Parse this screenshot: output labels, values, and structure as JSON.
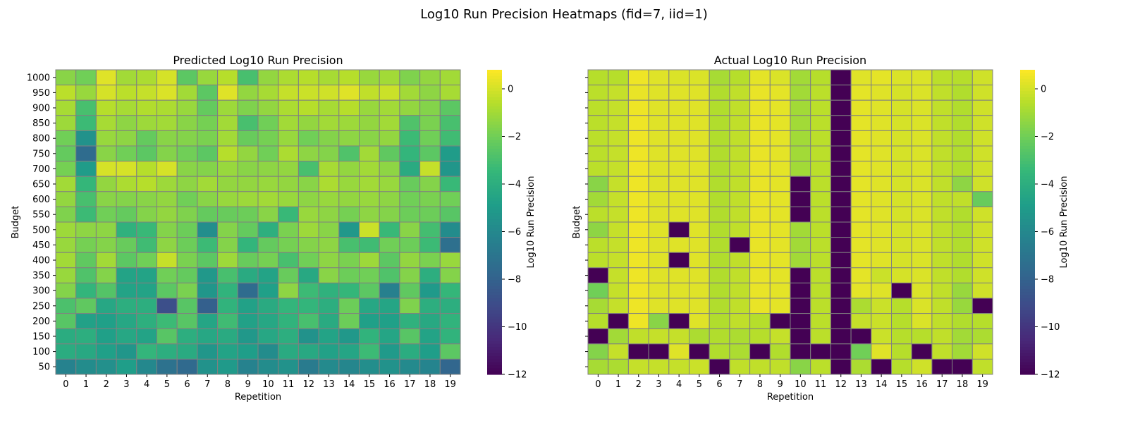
{
  "figure": {
    "title": "Log10 Run Precision Heatmaps (fid=7, iid=1)"
  },
  "colormap": {
    "name": "viridis",
    "stops": [
      "#440154",
      "#482878",
      "#3e4a89",
      "#31688e",
      "#26828e",
      "#1f9e89",
      "#35b779",
      "#6ece58",
      "#b5de2b",
      "#fde725"
    ]
  },
  "chart_data": [
    {
      "type": "heatmap",
      "title": "Predicted Log10 Run Precision",
      "xlabel": "Repetition",
      "ylabel": "Budget",
      "x": [
        0,
        1,
        2,
        3,
        4,
        5,
        6,
        7,
        8,
        9,
        10,
        11,
        12,
        13,
        14,
        15,
        16,
        17,
        18,
        19
      ],
      "y": [
        1000,
        950,
        900,
        850,
        800,
        750,
        700,
        650,
        600,
        550,
        500,
        450,
        400,
        350,
        300,
        250,
        200,
        150,
        100,
        50
      ],
      "colorbar_label": "Log10 Run Precision",
      "colorbar_ticks": [
        0,
        -2,
        -4,
        -6,
        -8,
        -10,
        -12
      ],
      "vmin": -12,
      "vmax": 0.8,
      "values": [
        [
          -1.5,
          -2.0,
          0.2,
          -1.0,
          -0.8,
          0.0,
          -2.5,
          -1.2,
          -0.6,
          -3.0,
          -1.3,
          -0.8,
          -0.6,
          -0.9,
          -0.6,
          -1.2,
          -1.0,
          -1.7,
          -1.3,
          -1.0
        ],
        [
          -0.5,
          -1.2,
          0.0,
          -0.5,
          -0.3,
          0.1,
          -1.0,
          -2.5,
          0.2,
          -1.3,
          -0.9,
          -0.3,
          -0.2,
          -0.1,
          0.2,
          -0.4,
          -0.2,
          -1.0,
          -1.4,
          -0.9
        ],
        [
          -0.9,
          -3.0,
          -0.6,
          -0.9,
          -0.7,
          -0.8,
          -1.2,
          -2.3,
          -1.1,
          -1.7,
          -1.3,
          -0.8,
          -0.6,
          -0.9,
          -0.6,
          -1.2,
          -1.0,
          -1.3,
          -1.6,
          -2.5
        ],
        [
          -1.1,
          -3.3,
          -0.9,
          -1.4,
          -1.1,
          -1.0,
          -1.5,
          -1.9,
          -1.0,
          -3.0,
          -2.0,
          -1.0,
          -1.3,
          -1.0,
          -1.1,
          -1.3,
          -1.0,
          -2.8,
          -1.8,
          -3.0
        ],
        [
          -2.0,
          -5.5,
          -1.2,
          -1.4,
          -2.3,
          -1.5,
          -1.6,
          -1.8,
          -1.0,
          -2.2,
          -1.9,
          -1.2,
          -2.0,
          -1.6,
          -1.4,
          -1.5,
          -1.3,
          -3.3,
          -2.0,
          -3.2
        ],
        [
          -2.3,
          -7.5,
          -1.5,
          -2.0,
          -2.5,
          -1.6,
          -2.0,
          -2.5,
          -0.6,
          -1.3,
          -2.0,
          -0.8,
          -1.4,
          -1.6,
          -2.8,
          -1.0,
          -2.4,
          -3.6,
          -2.5,
          -5.0
        ],
        [
          -1.9,
          -5.0,
          0.0,
          0.0,
          -0.6,
          0.0,
          -1.5,
          -1.6,
          -1.2,
          -1.5,
          -1.4,
          -1.3,
          -3.0,
          -0.9,
          -1.3,
          -1.0,
          -1.4,
          -4.2,
          -0.3,
          -5.3
        ],
        [
          -1.0,
          -3.5,
          -1.3,
          -0.8,
          -0.6,
          -1.1,
          -1.4,
          -1.0,
          -1.3,
          -1.3,
          -1.2,
          -1.3,
          -1.5,
          -0.8,
          -1.2,
          -1.0,
          -1.2,
          -2.2,
          -1.6,
          -3.4
        ],
        [
          -1.3,
          -3.0,
          -1.5,
          -1.6,
          -1.5,
          -1.3,
          -2.0,
          -1.5,
          -1.2,
          -1.1,
          -1.0,
          -1.2,
          -1.4,
          -1.2,
          -1.3,
          -1.2,
          -1.4,
          -2.0,
          -1.8,
          -2.0
        ],
        [
          -1.7,
          -3.3,
          -2.0,
          -2.3,
          -1.6,
          -1.3,
          -1.7,
          -2.3,
          -2.2,
          -2.1,
          -1.5,
          -3.4,
          -1.2,
          -1.4,
          -1.9,
          -1.4,
          -1.6,
          -2.1,
          -2.1,
          -2.6
        ],
        [
          -1.1,
          -1.4,
          -1.4,
          -3.8,
          -3.4,
          -1.6,
          -2.1,
          -5.7,
          -1.6,
          -2.3,
          -3.9,
          -1.8,
          -1.1,
          -1.5,
          -5.2,
          -0.2,
          -3.4,
          -1.5,
          -3.1,
          -5.8
        ],
        [
          -1.2,
          -1.9,
          -1.6,
          -2.2,
          -3.2,
          -1.4,
          -2.1,
          -3.3,
          -1.6,
          -3.6,
          -2.3,
          -1.9,
          -1.6,
          -1.4,
          -3.0,
          -3.2,
          -2.0,
          -2.1,
          -3.3,
          -7.3
        ],
        [
          -1.0,
          -2.4,
          -1.0,
          -2.5,
          -2.0,
          -0.3,
          -1.8,
          -2.5,
          -1.1,
          -2.2,
          -1.9,
          -3.0,
          -2.0,
          -1.4,
          -1.8,
          -1.1,
          -2.5,
          -1.3,
          -1.8,
          -1.2
        ],
        [
          -1.2,
          -2.8,
          -1.6,
          -4.6,
          -4.6,
          -2.0,
          -2.3,
          -5.2,
          -3.0,
          -4.2,
          -4.6,
          -2.2,
          -4.3,
          -1.5,
          -2.1,
          -2.0,
          -2.8,
          -1.6,
          -4.0,
          -1.6
        ],
        [
          -1.6,
          -3.6,
          -2.7,
          -4.6,
          -4.6,
          -2.5,
          -1.8,
          -5.3,
          -3.7,
          -7.5,
          -4.8,
          -1.4,
          -3.3,
          -3.8,
          -3.5,
          -2.5,
          -6.4,
          -2.4,
          -5.1,
          -3.5
        ],
        [
          -2.9,
          -2.4,
          -4.4,
          -4.0,
          -4.0,
          -8.9,
          -2.6,
          -8.1,
          -3.7,
          -4.7,
          -4.2,
          -3.6,
          -3.6,
          -4.0,
          -2.1,
          -4.4,
          -4.5,
          -1.7,
          -4.0,
          -4.0
        ],
        [
          -2.6,
          -4.7,
          -4.8,
          -4.4,
          -3.9,
          -3.3,
          -2.6,
          -4.5,
          -3.2,
          -4.7,
          -4.4,
          -3.7,
          -3.0,
          -4.2,
          -2.1,
          -4.8,
          -4.8,
          -3.8,
          -4.3,
          -3.7
        ],
        [
          -4.1,
          -4.0,
          -4.8,
          -4.4,
          -4.6,
          -2.6,
          -4.0,
          -4.4,
          -4.2,
          -5.2,
          -4.4,
          -4.0,
          -5.5,
          -4.6,
          -5.2,
          -3.7,
          -4.5,
          -2.6,
          -4.6,
          -3.7
        ],
        [
          -4.1,
          -4.3,
          -4.8,
          -5.3,
          -3.6,
          -4.0,
          -4.2,
          -5.3,
          -4.6,
          -4.9,
          -5.8,
          -4.2,
          -4.3,
          -4.7,
          -4.5,
          -3.3,
          -5.1,
          -4.1,
          -4.9,
          -2.5
        ],
        [
          -6.3,
          -5.8,
          -5.6,
          -4.9,
          -6.0,
          -7.2,
          -7.6,
          -5.5,
          -5.1,
          -6.3,
          -5.8,
          -5.5,
          -6.7,
          -5.9,
          -6.1,
          -5.7,
          -5.5,
          -5.9,
          -6.2,
          -7.8
        ]
      ]
    },
    {
      "type": "heatmap",
      "title": "Actual Log10 Run Precision",
      "xlabel": "Repetition",
      "ylabel": "Budget",
      "x": [
        0,
        1,
        2,
        3,
        4,
        5,
        6,
        7,
        8,
        9,
        10,
        11,
        12,
        13,
        14,
        15,
        16,
        17,
        18,
        19
      ],
      "y": [
        1000,
        950,
        900,
        850,
        800,
        750,
        700,
        650,
        600,
        550,
        500,
        450,
        400,
        350,
        300,
        250,
        200,
        150,
        100,
        50
      ],
      "colorbar_label": "Log10 Run Precision",
      "colorbar_ticks": [
        0,
        -2,
        -4,
        -6,
        -8,
        -10,
        -12
      ],
      "vmin": -12,
      "vmax": 0.8,
      "values": [
        [
          -0.6,
          -0.6,
          0.5,
          0.2,
          0.1,
          0.1,
          -0.9,
          -0.6,
          0.3,
          0.1,
          -1.0,
          -0.6,
          -12,
          0.2,
          0.3,
          0.1,
          0.1,
          -0.5,
          -0.6,
          -0.1
        ],
        [
          -0.5,
          -0.3,
          0.4,
          0.2,
          0.2,
          0.2,
          -0.7,
          -0.4,
          0.4,
          0.3,
          -1.0,
          -0.5,
          -12,
          0.3,
          0.2,
          0.0,
          0.1,
          -0.4,
          -0.7,
          -0.1
        ],
        [
          -0.5,
          -0.3,
          0.5,
          0.2,
          0.2,
          0.2,
          -0.7,
          -0.4,
          0.4,
          0.3,
          -1.0,
          -0.5,
          -12,
          0.3,
          0.2,
          0.0,
          0.1,
          -0.4,
          -0.7,
          -0.1
        ],
        [
          -0.5,
          -0.3,
          0.5,
          0.2,
          0.2,
          0.2,
          -0.7,
          -0.4,
          0.4,
          0.3,
          -1.0,
          -0.5,
          -12,
          0.3,
          0.2,
          0.0,
          0.1,
          -0.4,
          -0.7,
          -0.1
        ],
        [
          -0.5,
          -0.3,
          0.5,
          0.2,
          0.2,
          0.2,
          -0.7,
          -0.4,
          0.4,
          0.3,
          -1.0,
          -0.5,
          -12,
          0.3,
          0.2,
          0.0,
          0.1,
          -0.4,
          -0.7,
          -0.1
        ],
        [
          -0.5,
          -0.3,
          0.5,
          0.2,
          0.2,
          0.2,
          -0.7,
          -0.4,
          0.4,
          0.3,
          -1.0,
          -0.5,
          -12,
          0.3,
          0.2,
          0.0,
          0.1,
          -0.4,
          -0.7,
          -0.1
        ],
        [
          -0.5,
          -0.3,
          0.5,
          0.2,
          0.2,
          0.2,
          -0.7,
          -0.4,
          0.4,
          0.3,
          -1.0,
          -0.5,
          -12,
          0.3,
          0.2,
          0.0,
          0.1,
          -0.4,
          -0.7,
          -0.1
        ],
        [
          -1.5,
          -0.3,
          0.5,
          0.2,
          0.2,
          0.2,
          -0.7,
          -0.4,
          0.4,
          0.3,
          -12,
          -0.5,
          -12,
          0.3,
          0.2,
          0.0,
          0.1,
          -0.4,
          -1.4,
          -0.1
        ],
        [
          -1.0,
          -0.3,
          0.5,
          0.2,
          0.2,
          0.2,
          -0.7,
          -0.4,
          0.4,
          0.3,
          -12,
          -0.5,
          -12,
          0.3,
          0.2,
          0.0,
          0.1,
          -0.4,
          -0.4,
          -2.2
        ],
        [
          -0.5,
          -0.3,
          0.5,
          0.2,
          0.2,
          0.2,
          -0.7,
          -0.4,
          0.4,
          0.3,
          -12,
          -0.5,
          -12,
          0.3,
          0.2,
          0.0,
          0.1,
          -0.4,
          -0.7,
          -0.1
        ],
        [
          -1.4,
          -0.3,
          0.5,
          0.2,
          -12,
          0.2,
          -0.7,
          -0.4,
          0.4,
          0.3,
          -1.0,
          -0.5,
          -12,
          0.3,
          0.2,
          0.0,
          0.1,
          -0.4,
          -0.7,
          -0.1
        ],
        [
          -0.5,
          -0.3,
          0.5,
          0.2,
          0.2,
          0.2,
          -0.7,
          -12,
          0.4,
          0.3,
          -1.0,
          -0.5,
          -12,
          0.3,
          0.2,
          0.0,
          0.1,
          -0.4,
          -0.7,
          -0.1
        ],
        [
          -0.5,
          -0.3,
          0.5,
          0.2,
          -12,
          0.2,
          -0.7,
          -0.4,
          0.4,
          0.3,
          -1.0,
          -0.5,
          -12,
          0.3,
          0.2,
          0.0,
          0.1,
          -0.4,
          -0.7,
          -0.1
        ],
        [
          -12,
          -0.3,
          0.5,
          0.2,
          0.2,
          0.2,
          -0.7,
          -0.4,
          0.4,
          0.3,
          -12,
          -0.5,
          -12,
          0.3,
          -0.2,
          0.0,
          0.1,
          -0.4,
          -0.7,
          -0.1
        ],
        [
          -2.0,
          -0.3,
          0.5,
          0.2,
          0.2,
          0.2,
          -0.7,
          -0.4,
          0.4,
          0.3,
          -12,
          -0.5,
          -12,
          0.3,
          0.2,
          -12,
          0.1,
          -0.4,
          -1.2,
          -0.1
        ],
        [
          -0.9,
          -0.3,
          0.5,
          0.2,
          0.2,
          0.2,
          -0.7,
          -0.4,
          0.4,
          0.3,
          -12,
          -0.5,
          -12,
          -0.8,
          -0.2,
          -0.6,
          0.1,
          -0.4,
          -1.2,
          -12
        ],
        [
          -0.6,
          -12,
          0.5,
          -1.5,
          -12,
          0.2,
          -0.7,
          -0.4,
          -0.6,
          -12,
          -12,
          -0.5,
          -12,
          -0.3,
          -0.2,
          -0.6,
          0.1,
          -0.4,
          -0.7,
          -0.6
        ],
        [
          -12,
          -1.0,
          -0.4,
          -0.3,
          -0.3,
          -0.8,
          -0.7,
          -0.8,
          -0.6,
          -0.3,
          -12,
          -0.5,
          -12,
          -12,
          -0.2,
          -0.6,
          -0.6,
          -0.4,
          -1.0,
          -0.8
        ],
        [
          -1.6,
          -0.3,
          -12,
          -12,
          0.2,
          -12,
          -0.7,
          -0.8,
          -12,
          -0.7,
          -12,
          -12,
          -12,
          -2.0,
          0.2,
          -0.6,
          -12,
          -0.4,
          -1.0,
          -0.1
        ],
        [
          -0.9,
          -0.8,
          -0.3,
          -0.3,
          -0.3,
          -0.2,
          -12,
          -0.4,
          -0.4,
          -0.4,
          -1.5,
          -0.5,
          -12,
          -0.8,
          -12,
          -0.6,
          -0.1,
          -12,
          -12,
          -0.4
        ]
      ]
    }
  ]
}
